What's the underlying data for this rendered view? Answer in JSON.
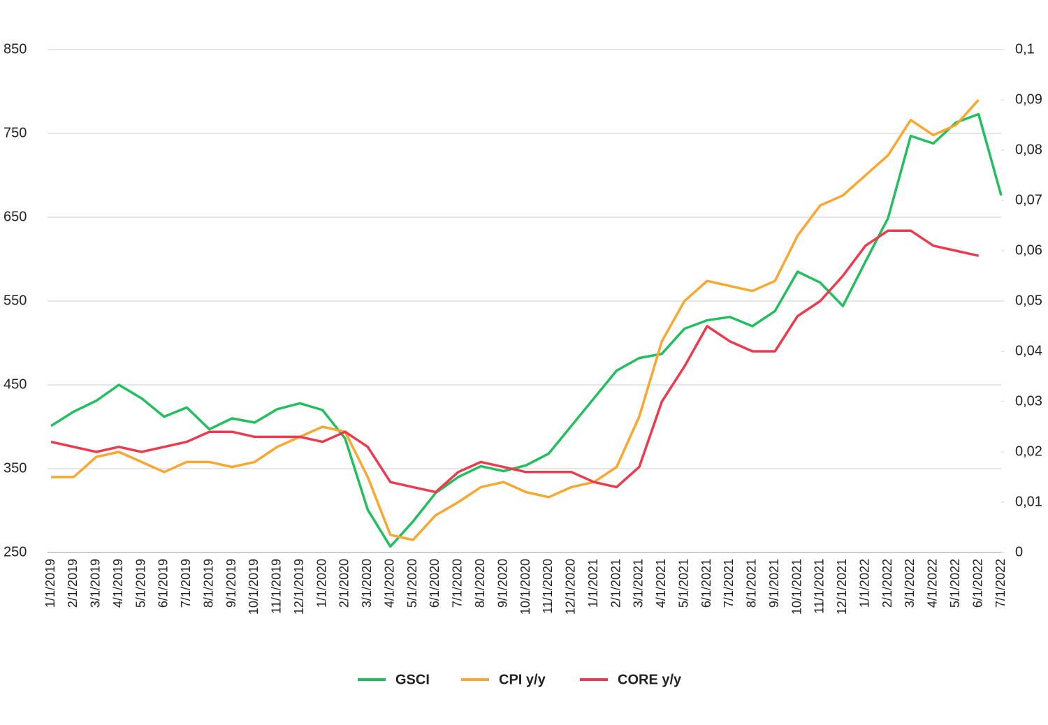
{
  "chart_data": {
    "type": "line",
    "categories": [
      "1/1/2019",
      "2/1/2019",
      "3/1/2019",
      "4/1/2019",
      "5/1/2019",
      "6/1/2019",
      "7/1/2019",
      "8/1/2019",
      "9/1/2019",
      "10/1/2019",
      "11/1/2019",
      "12/1/2019",
      "1/1/2020",
      "2/1/2020",
      "3/1/2020",
      "4/1/2020",
      "5/1/2020",
      "6/1/2020",
      "7/1/2020",
      "8/1/2020",
      "9/1/2020",
      "10/1/2020",
      "11/1/2020",
      "12/1/2020",
      "1/1/2021",
      "2/1/2021",
      "3/1/2021",
      "4/1/2021",
      "5/1/2021",
      "6/1/2021",
      "7/1/2021",
      "8/1/2021",
      "9/1/2021",
      "10/1/2021",
      "11/1/2021",
      "12/1/2021",
      "1/1/2022",
      "2/1/2022",
      "3/1/2022",
      "4/1/2022",
      "5/1/2022",
      "6/1/2022",
      "7/1/2022"
    ],
    "series": [
      {
        "name": "GSCI",
        "color": "#22bf5e",
        "values": [
          401,
          418,
          431,
          450,
          434,
          412,
          423,
          397,
          410,
          405,
          421,
          428,
          420,
          386,
          301,
          257,
          287,
          321,
          340,
          353,
          347,
          354,
          368,
          401,
          434,
          467,
          482,
          487,
          517,
          527,
          531,
          520,
          538,
          585,
          572,
          544,
          597,
          649,
          747,
          738,
          763,
          773,
          676
        ]
      },
      {
        "name": "CPI y/y",
        "color": "#f9a72f",
        "axis": "y2",
        "values": [
          0.015,
          0.015,
          0.019,
          0.02,
          0.018,
          0.016,
          0.018,
          0.018,
          0.017,
          0.018,
          0.021,
          0.023,
          0.025,
          0.024,
          0.015,
          0.0035,
          0.0025,
          0.0074,
          0.01,
          0.013,
          0.014,
          0.012,
          0.011,
          0.013,
          0.014,
          0.017,
          0.027,
          0.042,
          0.05,
          0.054,
          0.053,
          0.052,
          0.054,
          0.063,
          0.069,
          0.071,
          0.075,
          0.079,
          0.086,
          0.083,
          0.085,
          0.09,
          null
        ]
      },
      {
        "name": "CORE y/y",
        "color": "#ee3a4e",
        "axis": "y2",
        "values": [
          0.022,
          0.021,
          0.02,
          0.021,
          0.02,
          0.021,
          0.022,
          0.024,
          0.024,
          0.023,
          0.023,
          0.023,
          0.022,
          0.024,
          0.021,
          0.014,
          0.013,
          0.012,
          0.016,
          0.018,
          0.017,
          0.016,
          0.016,
          0.016,
          0.014,
          0.013,
          0.017,
          0.03,
          0.037,
          0.045,
          0.042,
          0.04,
          0.04,
          0.047,
          0.05,
          0.055,
          0.061,
          0.064,
          0.064,
          0.061,
          0.06,
          0.059,
          null
        ]
      }
    ],
    "ylim": [
      250,
      850
    ],
    "yticks": [
      250,
      350,
      450,
      550,
      650,
      750,
      850
    ],
    "y2lim": [
      0,
      0.1
    ],
    "y2ticks": [
      0,
      {
        "value": 0.01,
        "label": "0,01"
      },
      {
        "value": 0.02,
        "label": "0,02"
      },
      {
        "value": 0.03,
        "label": "0,03"
      },
      {
        "value": 0.04,
        "label": "0,04"
      },
      {
        "value": 0.05,
        "label": "0,05"
      },
      {
        "value": 0.06,
        "label": "0,06"
      },
      {
        "value": 0.07,
        "label": "0,07"
      },
      {
        "value": 0.08,
        "label": "0,08"
      },
      {
        "value": 0.09,
        "label": "0,09"
      },
      {
        "value": 0.1,
        "label": "0,1"
      }
    ],
    "grid": true,
    "legend": "bottom"
  }
}
